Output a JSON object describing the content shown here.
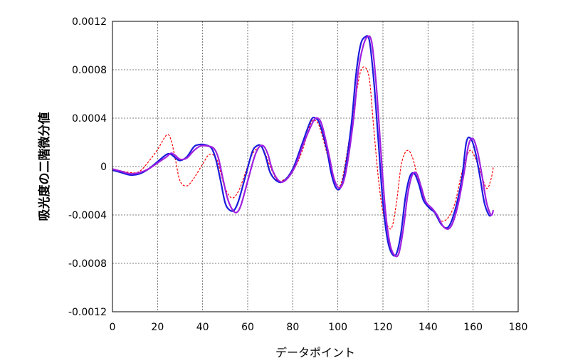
{
  "chart_data": {
    "type": "line",
    "title": "",
    "xlabel": "データポイント",
    "ylabel": "吸光度の二階微分値",
    "xlim": [
      0,
      180
    ],
    "ylim": [
      -0.0012,
      0.0012
    ],
    "xticks": [
      0,
      20,
      40,
      60,
      80,
      100,
      120,
      140,
      160,
      180
    ],
    "yticks": [
      -0.0012,
      -0.0008,
      -0.0004,
      0,
      0.0004,
      0.0008,
      0.0012
    ],
    "ytick_labels": [
      "-0.0012",
      "-0.0008",
      "-0.0004",
      "0",
      "0.0004",
      "0.0008",
      "0.0012"
    ],
    "xtick_labels": [
      "0",
      "20",
      "40",
      "60",
      "80",
      "100",
      "120",
      "140",
      "160",
      "180"
    ],
    "grid": true,
    "series": [
      {
        "color": "#ff0000",
        "style": "dashed",
        "points": [
          [
            0,
            -2e-05
          ],
          [
            8,
            -5e-05
          ],
          [
            12,
            -4e-05
          ],
          [
            16,
            4e-05
          ],
          [
            20,
            0.00014
          ],
          [
            24,
            0.00026
          ],
          [
            26,
            0.00022
          ],
          [
            28,
            5e-05
          ],
          [
            30,
            -0.00012
          ],
          [
            33,
            -0.00016
          ],
          [
            36,
            -0.0001
          ],
          [
            40,
            2e-05
          ],
          [
            43,
            0.0001
          ],
          [
            46,
            7e-05
          ],
          [
            48,
            -5e-05
          ],
          [
            50,
            -0.00018
          ],
          [
            53,
            -0.00026
          ],
          [
            56,
            -0.0002
          ],
          [
            59,
            -5e-05
          ],
          [
            62,
            0.0001
          ],
          [
            65,
            0.00016
          ],
          [
            67,
            0.00014
          ],
          [
            70,
            0.0
          ],
          [
            73,
            -0.00011
          ],
          [
            76,
            -0.00011
          ],
          [
            80,
            -4e-05
          ],
          [
            84,
            0.00012
          ],
          [
            88,
            0.00036
          ],
          [
            90,
            0.00038
          ],
          [
            92,
            0.00032
          ],
          [
            96,
            5e-05
          ],
          [
            98,
            -9e-05
          ],
          [
            100,
            -0.00017
          ],
          [
            102,
            -0.0001
          ],
          [
            105,
            0.00022
          ],
          [
            108,
            0.00058
          ],
          [
            110,
            0.00078
          ],
          [
            112,
            0.00082
          ],
          [
            114,
            0.00072
          ],
          [
            116,
            0.0003
          ],
          [
            118,
            -0.0001
          ],
          [
            120,
            -0.00038
          ],
          [
            122,
            -0.00049
          ],
          [
            124,
            -0.0005
          ],
          [
            126,
            -0.0003
          ],
          [
            128,
            0.0
          ],
          [
            130,
            0.00012
          ],
          [
            132,
            0.00012
          ],
          [
            134,
            2e-05
          ],
          [
            136,
            -0.00015
          ],
          [
            138,
            -0.00025
          ],
          [
            140,
            -0.00033
          ],
          [
            143,
            -0.00038
          ],
          [
            146,
            -0.00045
          ],
          [
            149,
            -0.00042
          ],
          [
            152,
            -0.0003
          ],
          [
            155,
            -5e-05
          ],
          [
            158,
            0.00012
          ],
          [
            160,
            0.00011
          ],
          [
            163,
            -3e-05
          ],
          [
            166,
            -0.00018
          ],
          [
            168,
            -0.0001
          ],
          [
            169,
            0.0
          ]
        ]
      },
      {
        "color": "#1a1adc",
        "style": "solid",
        "points": [
          [
            0,
            -3e-05
          ],
          [
            4,
            -5e-05
          ],
          [
            8,
            -7e-05
          ],
          [
            12,
            -6e-05
          ],
          [
            16,
            -2e-05
          ],
          [
            20,
            4e-05
          ],
          [
            24,
            0.0001
          ],
          [
            26,
            0.0001
          ],
          [
            28,
            7e-05
          ],
          [
            30,
            5e-05
          ],
          [
            33,
            8e-05
          ],
          [
            36,
            0.00016
          ],
          [
            38,
            0.00018
          ],
          [
            41,
            0.00018
          ],
          [
            44,
            0.00015
          ],
          [
            46,
            5e-05
          ],
          [
            48,
            -0.00012
          ],
          [
            50,
            -0.0003
          ],
          [
            52,
            -0.00036
          ],
          [
            54,
            -0.00036
          ],
          [
            56,
            -0.00028
          ],
          [
            59,
            -8e-05
          ],
          [
            62,
            0.00012
          ],
          [
            64,
            0.00017
          ],
          [
            66,
            0.00017
          ],
          [
            68,
            8e-05
          ],
          [
            70,
            -5e-05
          ],
          [
            73,
            -0.00012
          ],
          [
            76,
            -0.00012
          ],
          [
            80,
            -2e-05
          ],
          [
            84,
            0.00018
          ],
          [
            88,
            0.00038
          ],
          [
            90,
            0.0004
          ],
          [
            92,
            0.00035
          ],
          [
            95,
            0.00015
          ],
          [
            97,
            -5e-05
          ],
          [
            99,
            -0.00017
          ],
          [
            101,
            -0.00018
          ],
          [
            103,
            -5e-05
          ],
          [
            106,
            0.00035
          ],
          [
            108,
            0.00075
          ],
          [
            110,
            0.001
          ],
          [
            112,
            0.00107
          ],
          [
            114,
            0.00104
          ],
          [
            116,
            0.0007
          ],
          [
            118,
            0.0002
          ],
          [
            120,
            -0.0003
          ],
          [
            122,
            -0.0006
          ],
          [
            124,
            -0.00072
          ],
          [
            126,
            -0.00072
          ],
          [
            128,
            -0.00055
          ],
          [
            130,
            -0.00025
          ],
          [
            132,
            -8e-05
          ],
          [
            134,
            -6e-05
          ],
          [
            136,
            -0.00015
          ],
          [
            138,
            -0.00028
          ],
          [
            141,
            -0.00035
          ],
          [
            143,
            -0.00038
          ],
          [
            146,
            -0.00048
          ],
          [
            149,
            -0.0005
          ],
          [
            152,
            -0.00036
          ],
          [
            155,
            -0.0001
          ],
          [
            157,
            0.0002
          ],
          [
            159,
            0.00023
          ],
          [
            161,
            0.00012
          ],
          [
            163,
            -8e-05
          ],
          [
            165,
            -0.0003
          ],
          [
            167,
            -0.0004
          ],
          [
            168,
            -0.0004
          ]
        ]
      },
      {
        "color": "#a020e0",
        "style": "solid",
        "points": [
          [
            0,
            -2e-05
          ],
          [
            4,
            -4e-05
          ],
          [
            8,
            -6e-05
          ],
          [
            12,
            -5e-05
          ],
          [
            16,
            -2e-05
          ],
          [
            20,
            3e-05
          ],
          [
            24,
            8e-05
          ],
          [
            26,
            0.00011
          ],
          [
            28,
            9e-05
          ],
          [
            30,
            6e-05
          ],
          [
            33,
            7e-05
          ],
          [
            36,
            0.00013
          ],
          [
            39,
            0.00017
          ],
          [
            42,
            0.00017
          ],
          [
            45,
            0.00015
          ],
          [
            47,
            7e-05
          ],
          [
            49,
            -0.0001
          ],
          [
            51,
            -0.00026
          ],
          [
            53,
            -0.00035
          ],
          [
            55,
            -0.00038
          ],
          [
            57,
            -0.00032
          ],
          [
            60,
            -0.00012
          ],
          [
            63,
            8e-05
          ],
          [
            65,
            0.00016
          ],
          [
            67,
            0.00017
          ],
          [
            69,
            0.0001
          ],
          [
            71,
            -3e-05
          ],
          [
            74,
            -0.00012
          ],
          [
            77,
            -0.00011
          ],
          [
            81,
            0.0
          ],
          [
            85,
            0.0002
          ],
          [
            89,
            0.00037
          ],
          [
            91,
            0.0004
          ],
          [
            93,
            0.00034
          ],
          [
            96,
            0.0001
          ],
          [
            98,
            -8e-05
          ],
          [
            100,
            -0.00017
          ],
          [
            102,
            -0.00015
          ],
          [
            104,
            0.0
          ],
          [
            107,
            0.0004
          ],
          [
            109,
            0.00078
          ],
          [
            111,
            0.00098
          ],
          [
            113,
            0.00107
          ],
          [
            115,
            0.00103
          ],
          [
            117,
            0.00068
          ],
          [
            119,
            0.00015
          ],
          [
            121,
            -0.00035
          ],
          [
            123,
            -0.00063
          ],
          [
            125,
            -0.00073
          ],
          [
            127,
            -0.00072
          ],
          [
            129,
            -0.00052
          ],
          [
            131,
            -0.00023
          ],
          [
            133,
            -7e-05
          ],
          [
            135,
            -6e-05
          ],
          [
            137,
            -0.00017
          ],
          [
            139,
            -0.00029
          ],
          [
            142,
            -0.00035
          ],
          [
            144,
            -0.0004
          ],
          [
            147,
            -0.0005
          ],
          [
            150,
            -0.0005
          ],
          [
            153,
            -0.00034
          ],
          [
            156,
            -5e-05
          ],
          [
            158,
            0.00018
          ],
          [
            160,
            0.00023
          ],
          [
            162,
            0.00012
          ],
          [
            164,
            -8e-05
          ],
          [
            166,
            -0.0003
          ],
          [
            168,
            -0.0004
          ],
          [
            169,
            -0.00036
          ]
        ]
      }
    ]
  }
}
